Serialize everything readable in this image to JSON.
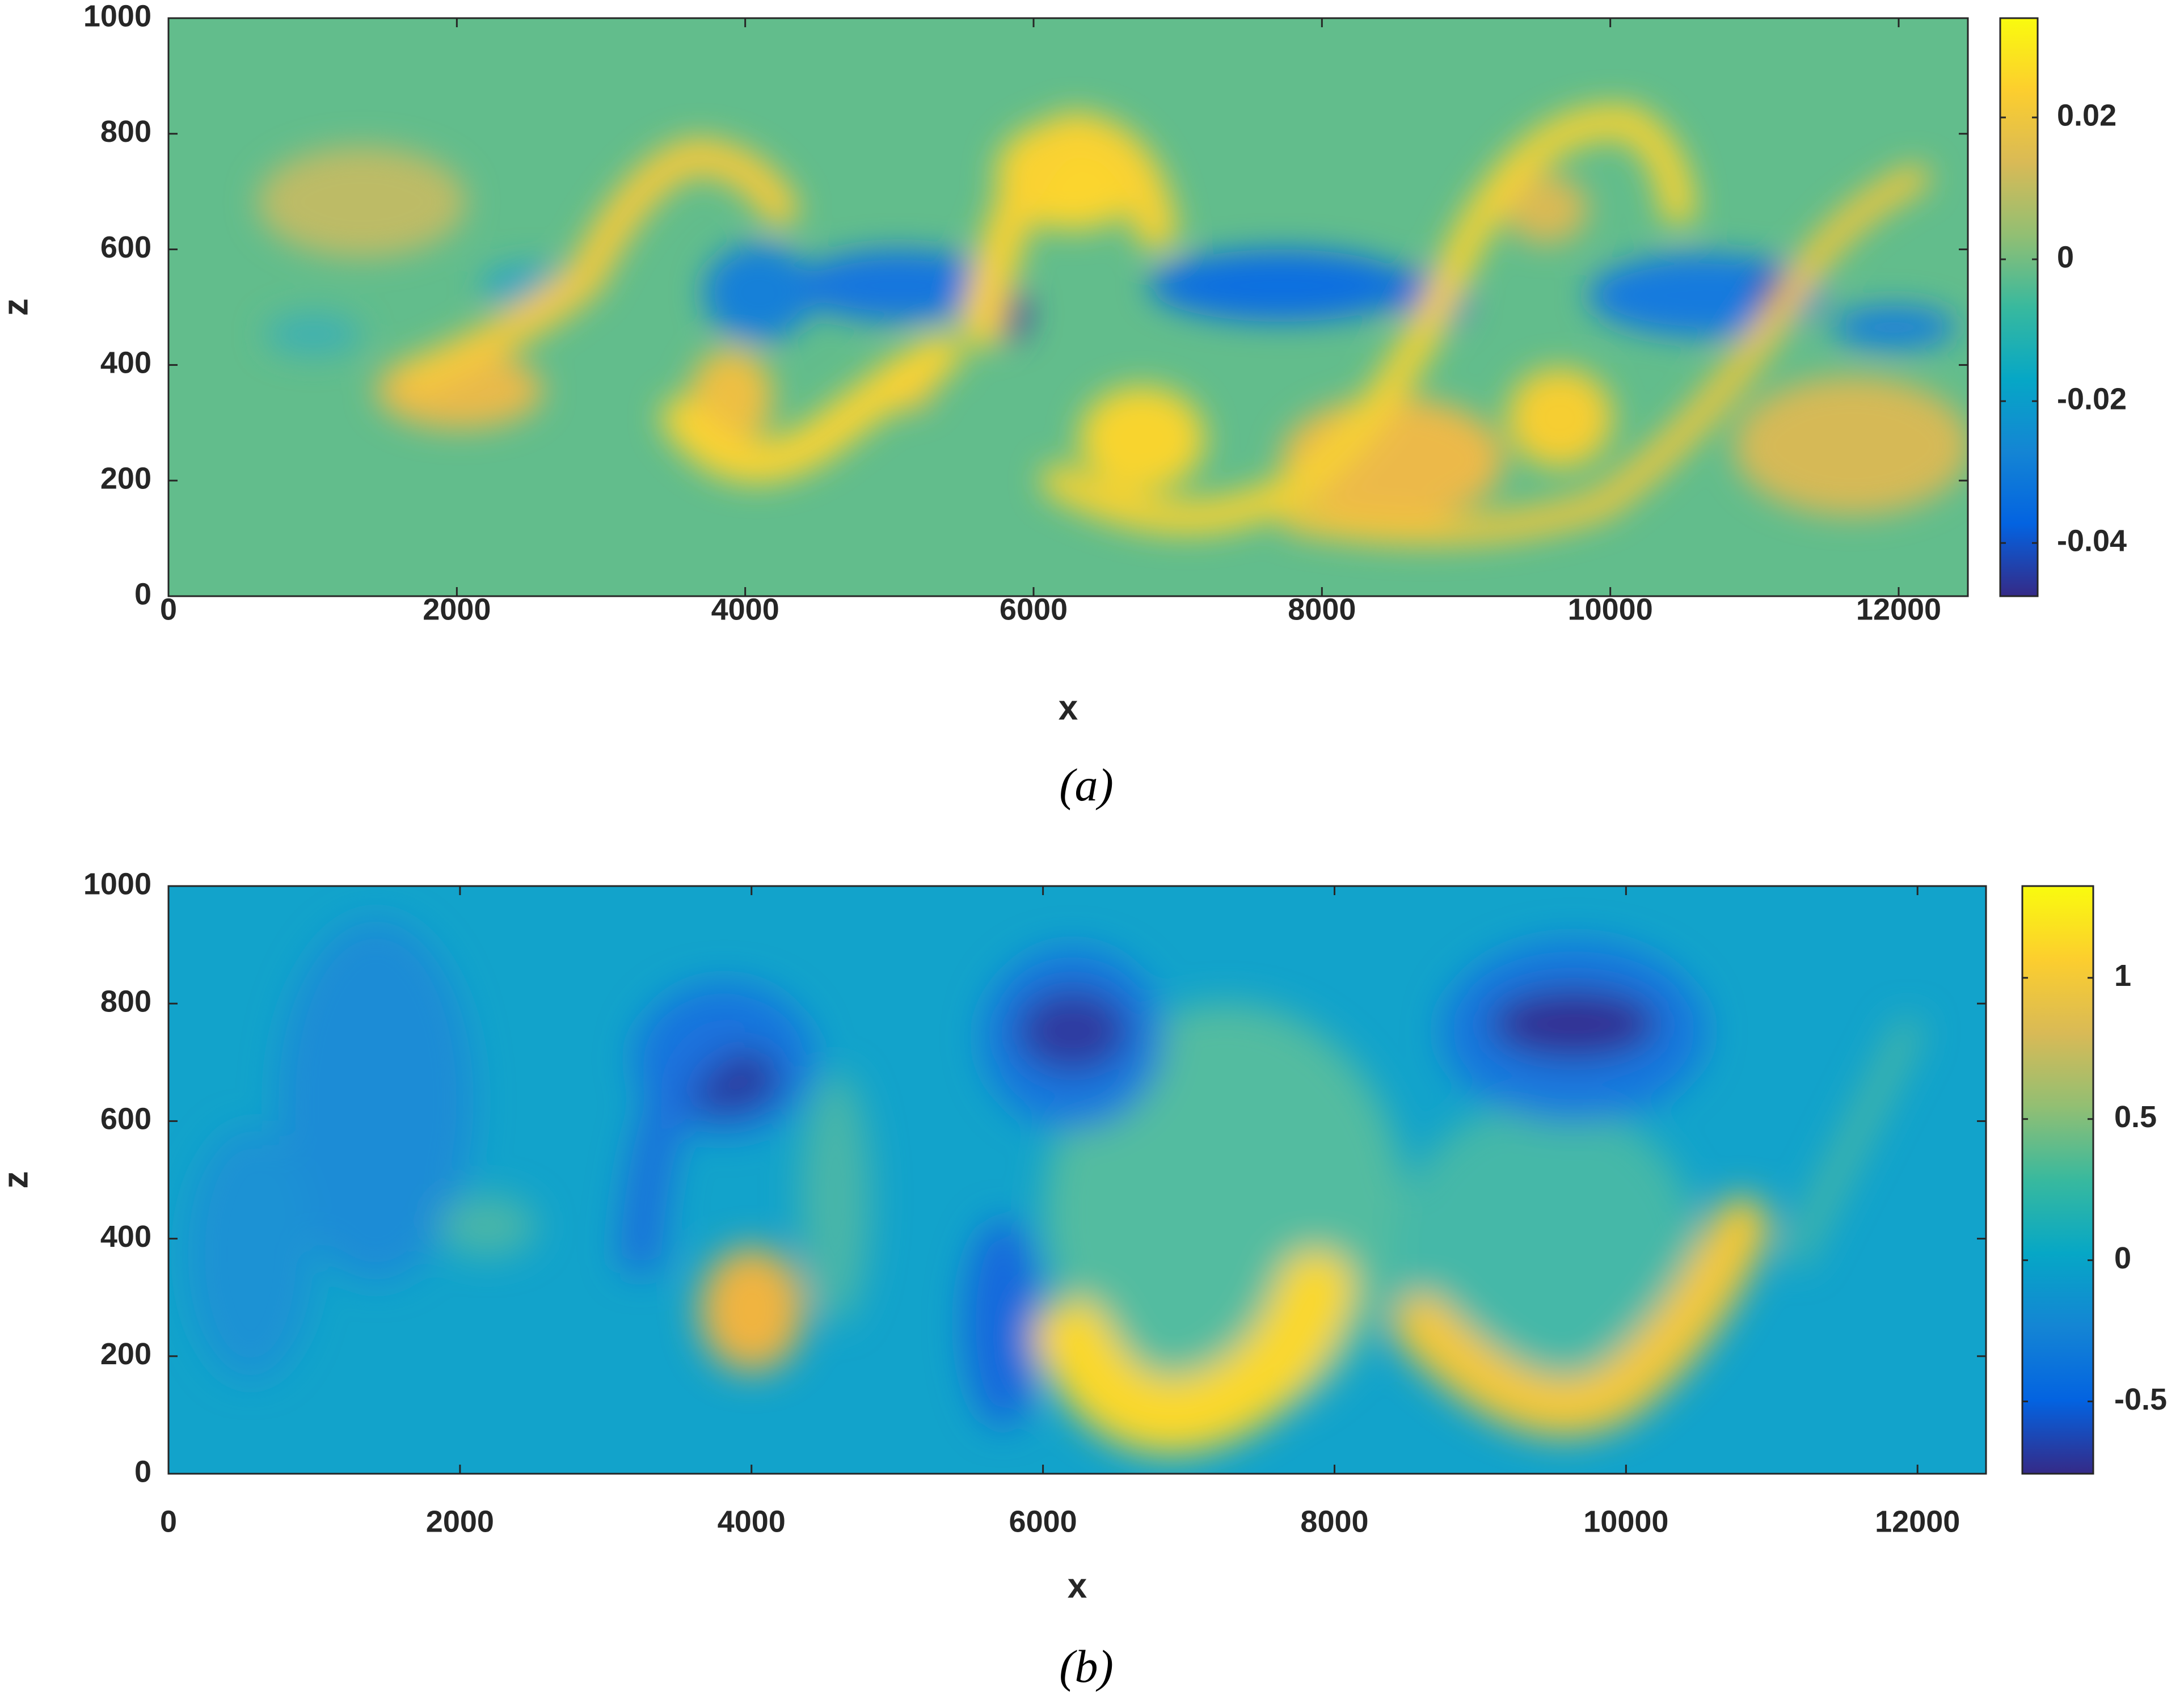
{
  "chart_data": [
    {
      "type": "heatmap",
      "xlabel": "x",
      "ylabel": "z",
      "caption": "(a)",
      "xlim": [
        0,
        12480
      ],
      "ylim": [
        0,
        1000
      ],
      "xticks": [
        0,
        2000,
        4000,
        6000,
        8000,
        10000,
        12000
      ],
      "yticks": [
        0,
        200,
        400,
        600,
        800,
        1000
      ],
      "colorbar": {
        "lim": [
          -0.0475,
          0.034
        ],
        "ticks": [
          -0.04,
          -0.02,
          0,
          0.02
        ],
        "colormap": [
          "#352a87",
          "#0363e1",
          "#1485d4",
          "#06a7c6",
          "#38b99e",
          "#92bf73",
          "#d9ba56",
          "#fcce2e",
          "#f9fb0e"
        ]
      }
    },
    {
      "type": "heatmap",
      "xlabel": "x",
      "ylabel": "z",
      "caption": "(b)",
      "xlim": [
        0,
        12470
      ],
      "ylim": [
        0,
        1000
      ],
      "xticks": [
        0,
        2000,
        4000,
        6000,
        8000,
        10000,
        12000
      ],
      "yticks": [
        0,
        200,
        400,
        600,
        800,
        1000
      ],
      "colorbar": {
        "lim": [
          -0.756,
          1.325
        ],
        "ticks": [
          -0.5,
          0,
          0.5,
          1
        ],
        "colormap": [
          "#352a87",
          "#0363e1",
          "#1485d4",
          "#06a7c6",
          "#38b99e",
          "#92bf73",
          "#d9ba56",
          "#fcce2e",
          "#f9fb0e"
        ]
      }
    }
  ]
}
